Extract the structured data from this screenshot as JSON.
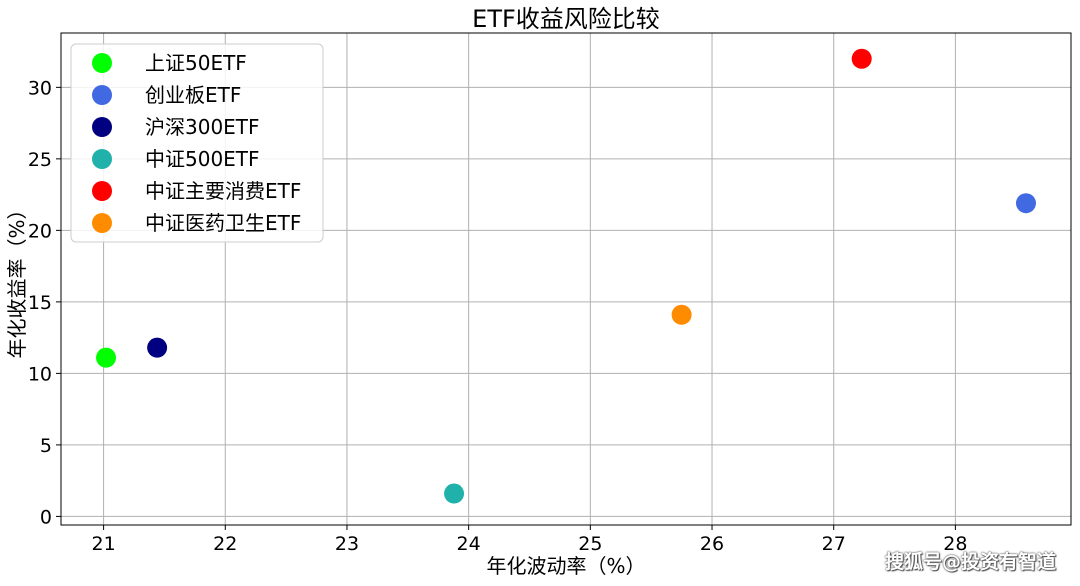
{
  "chart_data": {
    "type": "scatter",
    "title": "ETF收益风险比较",
    "xlabel": "年化波动率（%）",
    "ylabel": "年化收益率（%）",
    "xlim": [
      20.65,
      28.95
    ],
    "ylim": [
      -0.6,
      33.8
    ],
    "xticks": [
      21,
      22,
      23,
      24,
      25,
      26,
      27,
      28
    ],
    "yticks": [
      0,
      5,
      10,
      15,
      20,
      25,
      30
    ],
    "grid": true,
    "legend_position": "top-left",
    "series": [
      {
        "name": "上证50ETF",
        "color": "#00ff00",
        "points": [
          {
            "x": 21.02,
            "y": 11.1
          }
        ]
      },
      {
        "name": "创业板ETF",
        "color": "#4169e1",
        "points": [
          {
            "x": 28.58,
            "y": 21.9
          }
        ]
      },
      {
        "name": "沪深300ETF",
        "color": "#000080",
        "points": [
          {
            "x": 21.44,
            "y": 11.8
          }
        ]
      },
      {
        "name": "中证500ETF",
        "color": "#20b2aa",
        "points": [
          {
            "x": 23.88,
            "y": 1.6
          }
        ]
      },
      {
        "name": "中证主要消费ETF",
        "color": "#ff0000",
        "points": [
          {
            "x": 27.23,
            "y": 32.0
          }
        ]
      },
      {
        "name": "中证医药卫生ETF",
        "color": "#ff8c00",
        "points": [
          {
            "x": 25.75,
            "y": 14.1
          }
        ]
      }
    ]
  },
  "watermark": "搜狐号@投资有智道"
}
